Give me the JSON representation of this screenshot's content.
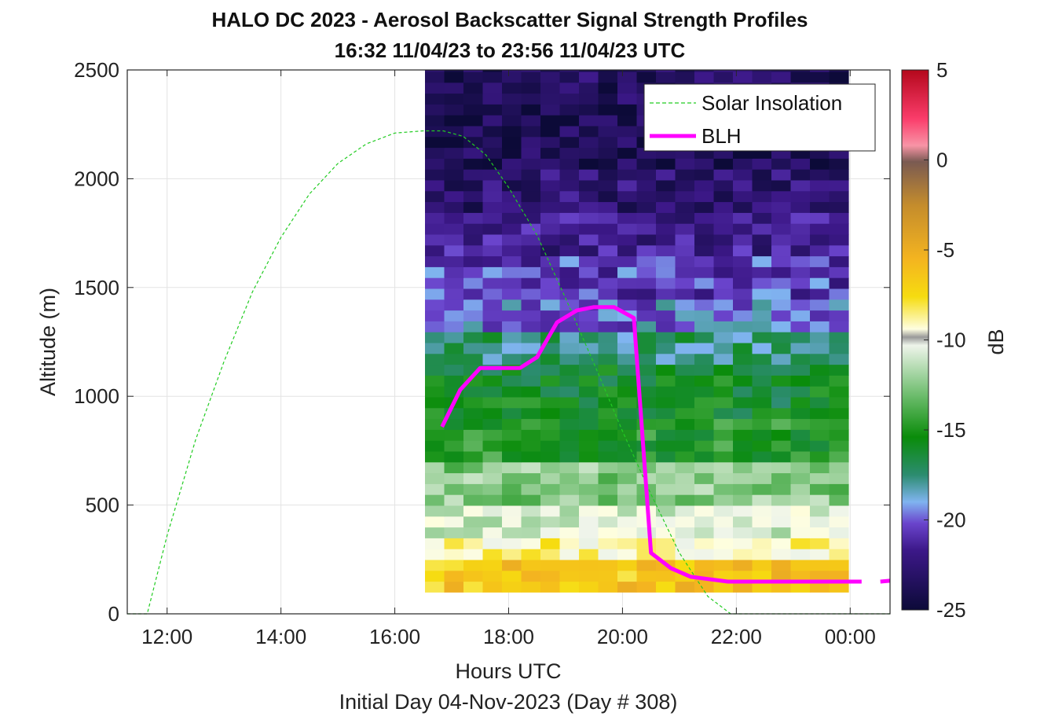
{
  "chart_data": {
    "type": "heatmap",
    "title": "HALO DC 2023 - Aerosol Backscatter Signal Strength Profiles",
    "subtitle": "16:32 11/04/23 to 23:56 11/04/23  UTC",
    "xlabel": "Hours UTC",
    "xlabel2": "Initial Day 04-Nov-2023 (Day # 308)",
    "ylabel": "Altitude (m)",
    "colorbar_label": "dB",
    "xlim": [
      11.3,
      24.7
    ],
    "ylim": [
      0,
      2500
    ],
    "x_ticks": [
      12,
      14,
      16,
      18,
      20,
      22,
      24
    ],
    "x_tick_labels": [
      "12:00",
      "14:00",
      "16:00",
      "18:00",
      "20:00",
      "22:00",
      "00:00"
    ],
    "y_ticks": [
      0,
      500,
      1000,
      1500,
      2000,
      2500
    ],
    "y_tick_labels": [
      "0",
      "500",
      "1000",
      "1500",
      "2000",
      "2500"
    ],
    "clim": [
      -25,
      5
    ],
    "colorbar_ticks": [
      5,
      0,
      -5,
      -10,
      -15,
      -20,
      -25
    ],
    "colorbar_tick_labels": [
      "5",
      "0",
      "-5",
      "-10",
      "-15",
      "-20",
      "-25"
    ],
    "grid": true,
    "legend_position": "top-right",
    "legend": [
      "Solar Insolation",
      "BLH"
    ],
    "heatmap_x_range": [
      16.53,
      23.93
    ],
    "heatmap_y_range": [
      100,
      2500
    ],
    "heatmap_bands": [
      {
        "y": [
          2350,
          2500
        ],
        "db": -23.5
      },
      {
        "y": [
          2050,
          2350
        ],
        "db": -24.0
      },
      {
        "y": [
          1850,
          2050
        ],
        "db": -23.0
      },
      {
        "y": [
          1650,
          1850
        ],
        "db": -22.0
      },
      {
        "y": [
          1450,
          1650
        ],
        "db": -21.0
      },
      {
        "y": [
          1300,
          1450
        ],
        "db": -20.0
      },
      {
        "y": [
          1150,
          1300
        ],
        "db": -18.0
      },
      {
        "y": [
          900,
          1150
        ],
        "db": -16.5
      },
      {
        "y": [
          700,
          900
        ],
        "db": -15.5
      },
      {
        "y": [
          500,
          700
        ],
        "db": -13.0
      },
      {
        "y": [
          350,
          500
        ],
        "db": -11.0
      },
      {
        "y": [
          250,
          350
        ],
        "db": -9.0
      },
      {
        "y": [
          100,
          250
        ],
        "db": -6.5
      }
    ],
    "series": [
      {
        "name": "Solar Insolation",
        "color": "#22cc22",
        "style": "dashed",
        "x": [
          11.3,
          11.65,
          12.0,
          12.5,
          13.0,
          13.5,
          14.0,
          14.5,
          15.0,
          15.5,
          16.0,
          16.5,
          16.85,
          17.2,
          17.6,
          18.0,
          18.5,
          19.0,
          19.5,
          20.0,
          20.5,
          21.0,
          21.5,
          21.9,
          22.0,
          24.7
        ],
        "y": [
          0,
          0,
          360,
          800,
          1160,
          1480,
          1730,
          1930,
          2070,
          2160,
          2210,
          2220,
          2220,
          2195,
          2110,
          1960,
          1740,
          1450,
          1150,
          840,
          550,
          280,
          80,
          0,
          0,
          0
        ]
      },
      {
        "name": "BLH",
        "color": "#ff00ff",
        "style": "solid",
        "x": [
          16.83,
          17.15,
          17.5,
          17.85,
          18.2,
          18.5,
          18.85,
          19.2,
          19.5,
          19.85,
          20.2,
          20.5,
          20.85,
          21.2,
          21.5,
          21.85,
          22.2,
          22.5,
          22.85,
          23.2,
          23.5,
          23.85,
          24.2
        ],
        "y": [
          860,
          1030,
          1130,
          1130,
          1130,
          1180,
          1340,
          1395,
          1410,
          1410,
          1360,
          280,
          210,
          170,
          160,
          148,
          148,
          148,
          148,
          148,
          148,
          148,
          148
        ]
      },
      {
        "name": "BLH",
        "color": "#ff00ff",
        "style": "solid",
        "x": [
          24.53,
          24.7
        ],
        "y": [
          148,
          152
        ]
      }
    ]
  }
}
